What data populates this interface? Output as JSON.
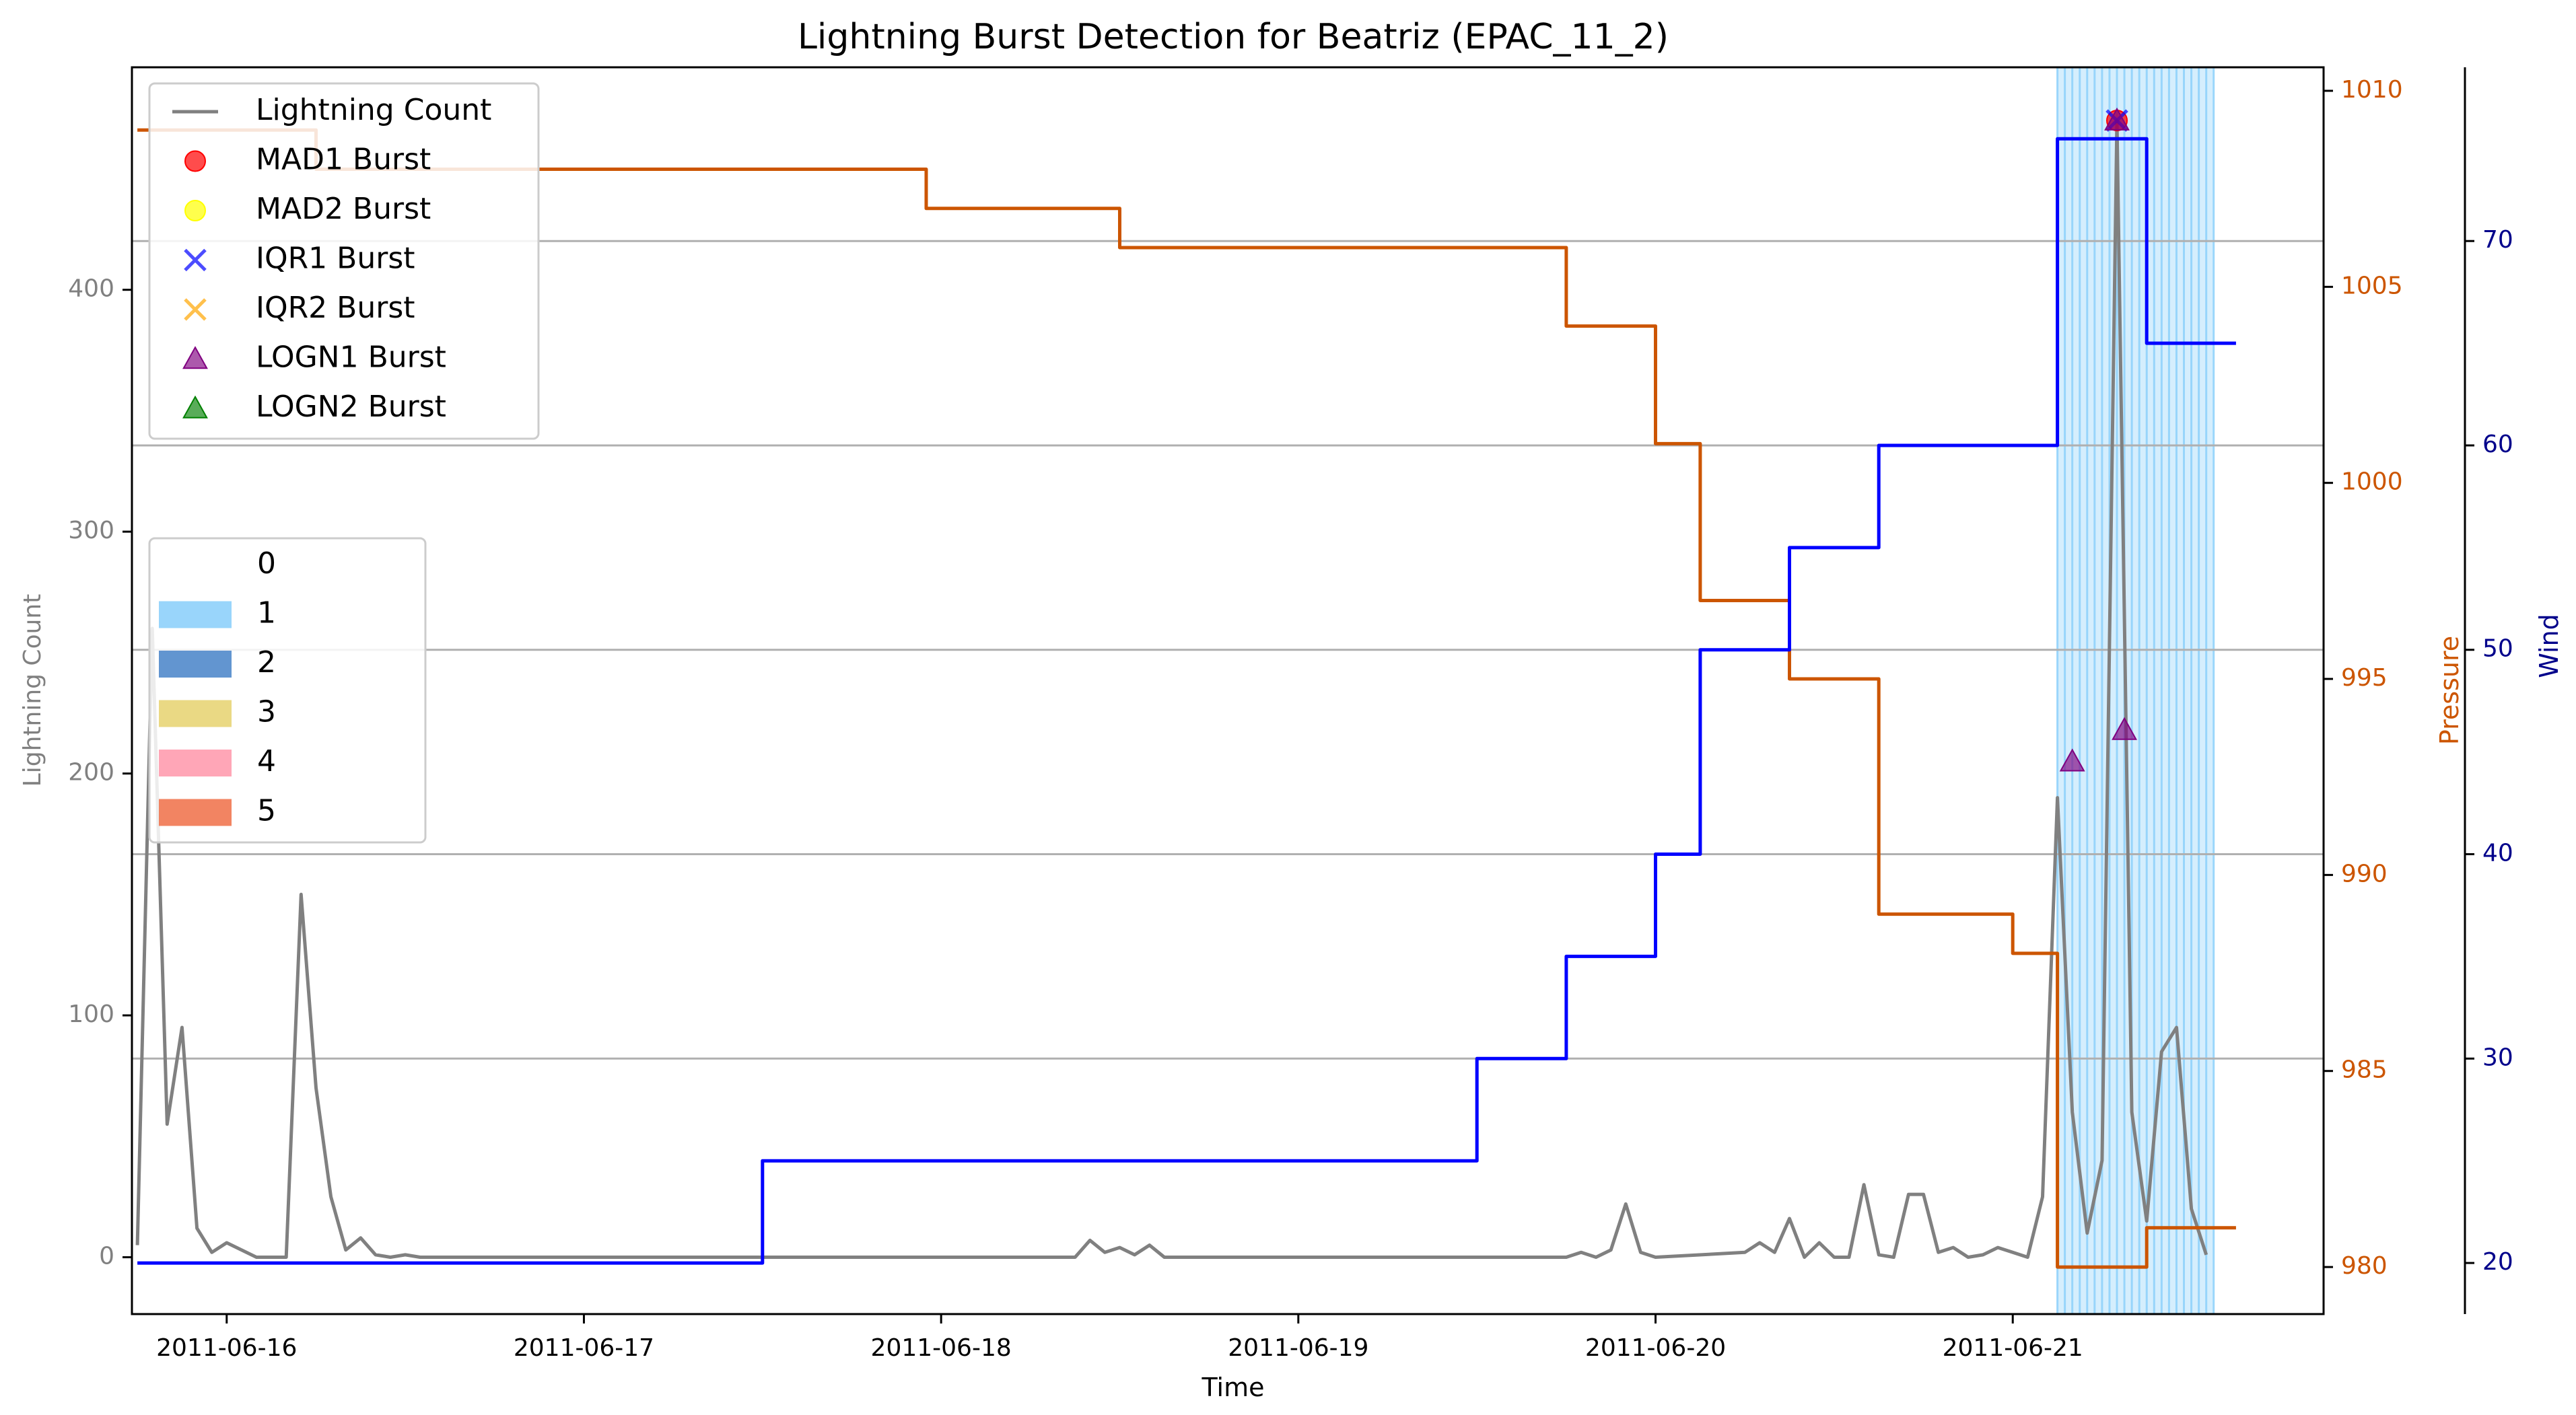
{
  "chart_data": {
    "type": "line",
    "title": "Lightning Burst Detection for Beatriz (EPAC_11_2)",
    "xlabel": "Time",
    "ylabel_left": "Lightning Count",
    "ylabel_pressure": "Pressure",
    "ylabel_wind": "Wind",
    "x_ticks": [
      "2011-06-16",
      "2011-06-17",
      "2011-06-18",
      "2011-06-19",
      "2011-06-20",
      "2011-06-21"
    ],
    "x_range": [
      "2011-06-15 17:38",
      "2011-06-21 20:53"
    ],
    "y_left": {
      "range": [
        -23.5,
        492
      ],
      "ticks": [
        0,
        100,
        200,
        300,
        400
      ]
    },
    "y_pressure": {
      "range": [
        978.8,
        1010.6
      ],
      "ticks": [
        980,
        985,
        990,
        995,
        1000,
        1005,
        1010
      ]
    },
    "y_wind": {
      "range": [
        17.5,
        78.5
      ],
      "ticks": [
        20,
        30,
        40,
        50,
        60,
        70
      ]
    },
    "grid_wind_values": [
      30,
      40,
      50,
      60,
      70
    ],
    "colors": {
      "lightning": "#808080",
      "pressure": "#cc5500",
      "wind": "#0000ff",
      "wind_axis": "#00008b",
      "lightning_axis": "#808080",
      "category_band": "#87cefa"
    },
    "legend_main": {
      "position": "upper-left",
      "items": [
        {
          "label": "Lightning Count",
          "marker": "line",
          "color": "#808080"
        },
        {
          "label": "MAD1 Burst",
          "marker": "circle",
          "color": "#ff0000"
        },
        {
          "label": "MAD2 Burst",
          "marker": "circle",
          "color": "#ffff00"
        },
        {
          "label": "IQR1 Burst",
          "marker": "x",
          "color": "#0000ff"
        },
        {
          "label": "IQR2 Burst",
          "marker": "x",
          "color": "#ffa500"
        },
        {
          "label": "LOGN1 Burst",
          "marker": "triangle",
          "color": "#800080"
        },
        {
          "label": "LOGN2 Burst",
          "marker": "triangle",
          "color": "#008000"
        }
      ]
    },
    "legend_category": {
      "position": "center-left",
      "items": [
        {
          "label": "0",
          "color": "none"
        },
        {
          "label": "1",
          "color": "#87cefa"
        },
        {
          "label": "2",
          "color": "#4682c8"
        },
        {
          "label": "3",
          "color": "#e6d26e"
        },
        {
          "label": "4",
          "color": "#ff96aa"
        },
        {
          "label": "5",
          "color": "#f06e46"
        }
      ]
    },
    "category_band": {
      "category": 1,
      "start": "2011-06-21 03:00",
      "end": "2011-06-21 13:30"
    },
    "series": [
      {
        "name": "Lightning Count",
        "axis": "left",
        "x": [
          "2011-06-15 18:00",
          "2011-06-15 19:00",
          "2011-06-15 20:00",
          "2011-06-15 21:00",
          "2011-06-15 22:00",
          "2011-06-15 23:00",
          "2011-06-16 00:00",
          "2011-06-16 01:00",
          "2011-06-16 02:00",
          "2011-06-16 03:00",
          "2011-06-16 04:00",
          "2011-06-16 05:00",
          "2011-06-16 06:00",
          "2011-06-16 07:00",
          "2011-06-16 08:00",
          "2011-06-16 09:00",
          "2011-06-16 10:00",
          "2011-06-16 11:00",
          "2011-06-16 12:00",
          "2011-06-16 13:00",
          "2011-06-16 14:00",
          "2011-06-16 15:00",
          "2011-06-16 16:00",
          "2011-06-18 09:00",
          "2011-06-18 10:00",
          "2011-06-18 11:00",
          "2011-06-18 12:00",
          "2011-06-18 13:00",
          "2011-06-18 14:00",
          "2011-06-18 15:00",
          "2011-06-19 18:00",
          "2011-06-19 19:00",
          "2011-06-19 20:00",
          "2011-06-19 21:00",
          "2011-06-19 22:00",
          "2011-06-19 23:00",
          "2011-06-20 00:00",
          "2011-06-20 06:00",
          "2011-06-20 07:00",
          "2011-06-20 08:00",
          "2011-06-20 09:00",
          "2011-06-20 10:00",
          "2011-06-20 11:00",
          "2011-06-20 12:00",
          "2011-06-20 13:00",
          "2011-06-20 14:00",
          "2011-06-20 15:00",
          "2011-06-20 16:00",
          "2011-06-20 17:00",
          "2011-06-20 18:00",
          "2011-06-20 19:00",
          "2011-06-20 20:00",
          "2011-06-20 21:00",
          "2011-06-20 22:00",
          "2011-06-20 23:00",
          "2011-06-21 00:00",
          "2011-06-21 01:00",
          "2011-06-21 02:00",
          "2011-06-21 03:00",
          "2011-06-21 04:00",
          "2011-06-21 05:00",
          "2011-06-21 06:00",
          "2011-06-21 07:00",
          "2011-06-21 08:00",
          "2011-06-21 09:00",
          "2011-06-21 10:00",
          "2011-06-21 11:00",
          "2011-06-21 12:00",
          "2011-06-21 13:00"
        ],
        "values": [
          5,
          260,
          55,
          95,
          12,
          2,
          6,
          3,
          0,
          0,
          0,
          150,
          70,
          25,
          3,
          8,
          1,
          0,
          1,
          0,
          0,
          0,
          0,
          0,
          7,
          2,
          4,
          1,
          5,
          0,
          0,
          2,
          0,
          3,
          22,
          2,
          0,
          2,
          6,
          2,
          16,
          0,
          6,
          0,
          0,
          30,
          1,
          0,
          26,
          26,
          2,
          4,
          0,
          1,
          4,
          2,
          0,
          25,
          190,
          60,
          10,
          40,
          470,
          60,
          15,
          85,
          95,
          20,
          1
        ]
      },
      {
        "name": "Pressure",
        "axis": "pressure",
        "x": [
          "2011-06-15 18:00",
          "2011-06-16 06:00",
          "2011-06-16 06:00",
          "2011-06-17 23:00",
          "2011-06-17 23:00",
          "2011-06-18 12:00",
          "2011-06-18 12:00",
          "2011-06-19 18:00",
          "2011-06-19 18:00",
          "2011-06-20 00:00",
          "2011-06-20 00:00",
          "2011-06-20 03:00",
          "2011-06-20 03:00",
          "2011-06-20 09:00",
          "2011-06-20 09:00",
          "2011-06-20 15:00",
          "2011-06-20 15:00",
          "2011-06-21 00:00",
          "2011-06-21 00:00",
          "2011-06-21 03:00",
          "2011-06-21 03:00",
          "2011-06-21 09:00",
          "2011-06-21 09:00",
          "2011-06-21 15:00"
        ],
        "values": [
          1009,
          1009,
          1008,
          1008,
          1007,
          1007,
          1006,
          1006,
          1004,
          1004,
          1001,
          1001,
          997,
          997,
          995,
          995,
          989,
          989,
          988,
          988,
          980,
          980,
          981,
          981
        ]
      },
      {
        "name": "Wind",
        "axis": "wind",
        "x": [
          "2011-06-15 18:00",
          "2011-06-17 12:00",
          "2011-06-17 12:00",
          "2011-06-19 12:00",
          "2011-06-19 12:00",
          "2011-06-19 18:00",
          "2011-06-19 18:00",
          "2011-06-20 00:00",
          "2011-06-20 00:00",
          "2011-06-20 03:00",
          "2011-06-20 03:00",
          "2011-06-20 09:00",
          "2011-06-20 09:00",
          "2011-06-20 15:00",
          "2011-06-20 15:00",
          "2011-06-21 03:00",
          "2011-06-21 03:00",
          "2011-06-21 09:00",
          "2011-06-21 09:00",
          "2011-06-21 15:00"
        ],
        "values": [
          20,
          20,
          25,
          25,
          30,
          30,
          35,
          35,
          40,
          40,
          50,
          50,
          55,
          55,
          60,
          60,
          75,
          75,
          65,
          65
        ]
      }
    ],
    "bursts": [
      {
        "method": "MAD1",
        "time": "2011-06-21 07:00",
        "value": 470
      },
      {
        "method": "IQR1",
        "time": "2011-06-21 07:00",
        "value": 470
      },
      {
        "method": "LOGN1",
        "time": "2011-06-21 07:00",
        "value": 470
      },
      {
        "method": "LOGN1",
        "time": "2011-06-21 04:00",
        "value": 205
      },
      {
        "method": "LOGN1",
        "time": "2011-06-21 07:30",
        "value": 218
      }
    ]
  }
}
